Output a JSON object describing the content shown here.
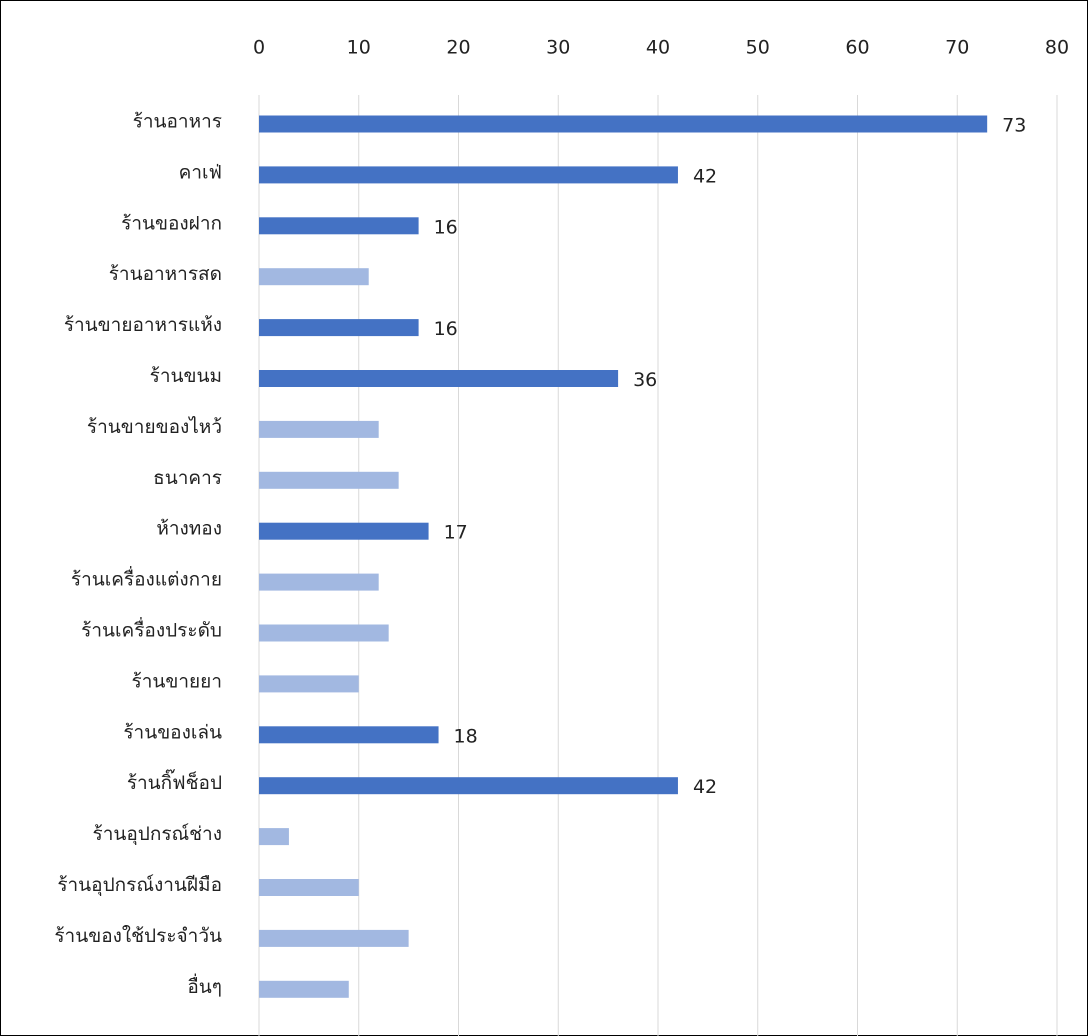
{
  "chart_data": {
    "type": "hbar",
    "categories": [
      "ร้านอาหาร",
      "คาเฟ่",
      "ร้านของฝาก",
      "ร้านอาหารสด",
      "ร้านขายอาหารแห้ง",
      "ร้านขนม",
      "ร้านขายของไหว้",
      "ธนาคาร",
      "ห้างทอง",
      "ร้านเครื่องแต่งกาย",
      "ร้านเครื่องประดับ",
      "ร้านขายยา",
      "ร้านของเล่น",
      "ร้านกิ๊ฟช็อป",
      "ร้านอุปกรณ์ช่าง",
      "ร้านอุปกรณ์งานฝีมือ",
      "ร้านของใช้ประจำวัน",
      "อื่นๆ"
    ],
    "values": [
      73,
      42,
      16,
      11,
      16,
      36,
      12,
      14,
      17,
      12,
      13,
      10,
      18,
      42,
      3,
      10,
      15,
      9
    ],
    "colors": [
      "#4472c4",
      "#4472c4",
      "#4472c4",
      "#a2b8e1",
      "#4472c4",
      "#4472c4",
      "#a2b8e1",
      "#a2b8e1",
      "#4472c4",
      "#a2b8e1",
      "#a2b8e1",
      "#a2b8e1",
      "#4472c4",
      "#4472c4",
      "#a2b8e1",
      "#a2b8e1",
      "#a2b8e1",
      "#a2b8e1"
    ],
    "show_value_labels": [
      true,
      true,
      true,
      false,
      true,
      true,
      false,
      false,
      true,
      false,
      false,
      false,
      true,
      true,
      false,
      false,
      false,
      false
    ],
    "xlim": [
      0,
      80
    ],
    "xticks": [
      0,
      10,
      20,
      30,
      40,
      50,
      60,
      70,
      80
    ],
    "grid": true
  }
}
